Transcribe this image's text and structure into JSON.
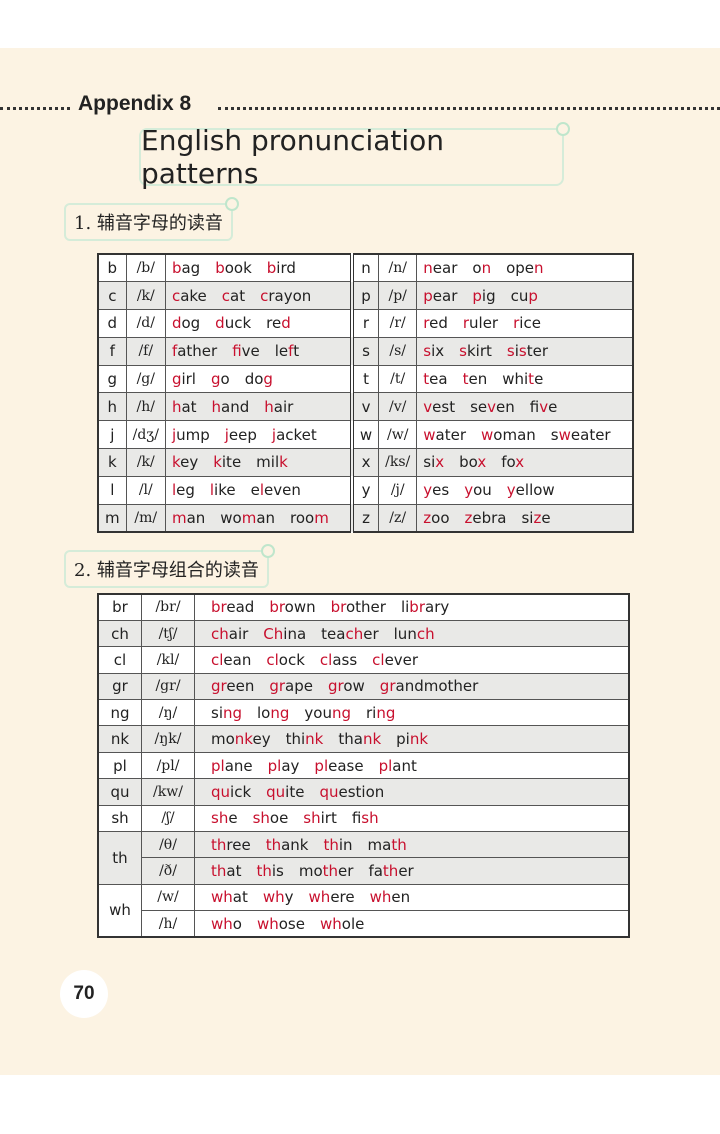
{
  "header": {
    "appendix": "Appendix 8",
    "title": "English pronunciation patterns"
  },
  "section1": {
    "heading": "1. 辅音字母的读音"
  },
  "section2": {
    "heading": "2. 辅音字母组合的读音"
  },
  "highlight_color": "#c8102e",
  "table1": [
    [
      {
        "letter": "b",
        "ipa": "/b/",
        "words": [
          [
            "",
            "b",
            "ag"
          ],
          [
            "",
            "b",
            "ook"
          ],
          [
            "",
            "b",
            "ird"
          ]
        ]
      },
      {
        "letter": "n",
        "ipa": "/n/",
        "words": [
          [
            "",
            "n",
            "ear"
          ],
          [
            "o",
            "n"
          ],
          [
            "ope",
            "n"
          ]
        ]
      }
    ],
    [
      {
        "letter": "c",
        "ipa": "/k/",
        "words": [
          [
            "",
            "c",
            "ake"
          ],
          [
            "",
            "c",
            "at"
          ],
          [
            "",
            "c",
            "rayon"
          ]
        ]
      },
      {
        "letter": "p",
        "ipa": "/p/",
        "words": [
          [
            "",
            "p",
            "ear"
          ],
          [
            "",
            "p",
            "ig"
          ],
          [
            "cu",
            "p"
          ]
        ]
      }
    ],
    [
      {
        "letter": "d",
        "ipa": "/d/",
        "words": [
          [
            "",
            "d",
            "og"
          ],
          [
            "",
            "d",
            "uck"
          ],
          [
            "re",
            "d"
          ]
        ]
      },
      {
        "letter": "r",
        "ipa": "/r/",
        "words": [
          [
            "",
            "r",
            "ed"
          ],
          [
            "",
            "r",
            "uler"
          ],
          [
            "",
            "r",
            "ice"
          ]
        ]
      }
    ],
    [
      {
        "letter": "f",
        "ipa": "/f/",
        "words": [
          [
            "",
            "f",
            "ather"
          ],
          [
            "",
            "f",
            "ive"
          ],
          [
            "le",
            "f",
            "t"
          ]
        ]
      },
      {
        "letter": "s",
        "ipa": "/s/",
        "words": [
          [
            "",
            "s",
            "ix"
          ],
          [
            "",
            "s",
            "kirt"
          ],
          [
            "",
            "s",
            "i",
            "s",
            "ter"
          ]
        ]
      }
    ],
    [
      {
        "letter": "g",
        "ipa": "/g/",
        "words": [
          [
            "",
            "g",
            "irl"
          ],
          [
            "",
            "g",
            "o"
          ],
          [
            "do",
            "g"
          ]
        ]
      },
      {
        "letter": "t",
        "ipa": "/t/",
        "words": [
          [
            "",
            "t",
            "ea"
          ],
          [
            "",
            "t",
            "en"
          ],
          [
            "whi",
            "t",
            "e"
          ]
        ]
      }
    ],
    [
      {
        "letter": "h",
        "ipa": "/h/",
        "words": [
          [
            "",
            "h",
            "at"
          ],
          [
            "",
            "h",
            "and"
          ],
          [
            "",
            "h",
            "air"
          ]
        ]
      },
      {
        "letter": "v",
        "ipa": "/v/",
        "words": [
          [
            "",
            "v",
            "est"
          ],
          [
            "se",
            "v",
            "en"
          ],
          [
            "fi",
            "v",
            "e"
          ]
        ]
      }
    ],
    [
      {
        "letter": "j",
        "ipa": "/dʒ/",
        "words": [
          [
            "",
            "j",
            "ump"
          ],
          [
            "",
            "j",
            "eep"
          ],
          [
            "",
            "j",
            "acket"
          ]
        ]
      },
      {
        "letter": "w",
        "ipa": "/w/",
        "words": [
          [
            "",
            "w",
            "ater"
          ],
          [
            "",
            "w",
            "oman"
          ],
          [
            "s",
            "w",
            "eater"
          ]
        ]
      }
    ],
    [
      {
        "letter": "k",
        "ipa": "/k/",
        "words": [
          [
            "",
            "k",
            "ey"
          ],
          [
            "",
            "k",
            "ite"
          ],
          [
            "mil",
            "k"
          ]
        ]
      },
      {
        "letter": "x",
        "ipa": "/ks/",
        "words": [
          [
            "si",
            "x"
          ],
          [
            "bo",
            "x"
          ],
          [
            "fo",
            "x"
          ]
        ]
      }
    ],
    [
      {
        "letter": "l",
        "ipa": "/l/",
        "words": [
          [
            "",
            "l",
            "eg"
          ],
          [
            "",
            "l",
            "ike"
          ],
          [
            "e",
            "l",
            "even"
          ]
        ]
      },
      {
        "letter": "y",
        "ipa": "/j/",
        "words": [
          [
            "",
            "y",
            "es"
          ],
          [
            "",
            "y",
            "ou"
          ],
          [
            "",
            "y",
            "ellow"
          ]
        ]
      }
    ],
    [
      {
        "letter": "m",
        "ipa": "/m/",
        "words": [
          [
            "",
            "m",
            "an"
          ],
          [
            "wo",
            "m",
            "an"
          ],
          [
            "roo",
            "m"
          ]
        ]
      },
      {
        "letter": "z",
        "ipa": "/z/",
        "words": [
          [
            "",
            "z",
            "oo"
          ],
          [
            "",
            "z",
            "ebra"
          ],
          [
            "si",
            "z",
            "e"
          ]
        ]
      }
    ]
  ],
  "table2": [
    {
      "letters": "br",
      "sounds": [
        {
          "ipa": "/br/",
          "words": [
            [
              "",
              "br",
              "ead"
            ],
            [
              "",
              "br",
              "own"
            ],
            [
              "",
              "br",
              "other"
            ],
            [
              "li",
              "br",
              "ary"
            ]
          ]
        }
      ]
    },
    {
      "letters": "ch",
      "sounds": [
        {
          "ipa": "/tʃ/",
          "words": [
            [
              "",
              "ch",
              "air"
            ],
            [
              "",
              "Ch",
              "ina"
            ],
            [
              "tea",
              "ch",
              "er"
            ],
            [
              "lun",
              "ch"
            ]
          ]
        }
      ]
    },
    {
      "letters": "cl",
      "sounds": [
        {
          "ipa": "/kl/",
          "words": [
            [
              "",
              "cl",
              "ean"
            ],
            [
              "",
              "cl",
              "ock"
            ],
            [
              "",
              "cl",
              "ass"
            ],
            [
              "",
              "cl",
              "ever"
            ]
          ]
        }
      ]
    },
    {
      "letters": "gr",
      "sounds": [
        {
          "ipa": "/gr/",
          "words": [
            [
              "",
              "gr",
              "een"
            ],
            [
              "",
              "gr",
              "ape"
            ],
            [
              "",
              "gr",
              "ow"
            ],
            [
              "",
              "gr",
              "andmother"
            ]
          ]
        }
      ]
    },
    {
      "letters": "ng",
      "sounds": [
        {
          "ipa": "/ŋ/",
          "words": [
            [
              "si",
              "ng"
            ],
            [
              "lo",
              "ng"
            ],
            [
              "you",
              "ng"
            ],
            [
              "ri",
              "ng"
            ]
          ]
        }
      ]
    },
    {
      "letters": "nk",
      "sounds": [
        {
          "ipa": "/ŋk/",
          "words": [
            [
              "mo",
              "nk",
              "ey"
            ],
            [
              "thi",
              "nk"
            ],
            [
              "tha",
              "nk"
            ],
            [
              "pi",
              "nk"
            ]
          ]
        }
      ]
    },
    {
      "letters": "pl",
      "sounds": [
        {
          "ipa": "/pl/",
          "words": [
            [
              "",
              "pl",
              "ane"
            ],
            [
              "",
              "pl",
              "ay"
            ],
            [
              "",
              "pl",
              "ease"
            ],
            [
              "",
              "pl",
              "ant"
            ]
          ]
        }
      ]
    },
    {
      "letters": "qu",
      "sounds": [
        {
          "ipa": "/kw/",
          "words": [
            [
              "",
              "qu",
              "ick"
            ],
            [
              "",
              "qu",
              "ite"
            ],
            [
              "",
              "qu",
              "estion"
            ]
          ]
        }
      ]
    },
    {
      "letters": "sh",
      "sounds": [
        {
          "ipa": "/ʃ/",
          "words": [
            [
              "",
              "sh",
              "e"
            ],
            [
              "",
              "sh",
              "oe"
            ],
            [
              "",
              "sh",
              "irt"
            ],
            [
              "fi",
              "sh"
            ]
          ]
        }
      ]
    },
    {
      "letters": "th",
      "sounds": [
        {
          "ipa": "/θ/",
          "words": [
            [
              "",
              "th",
              "ree"
            ],
            [
              "",
              "th",
              "ank"
            ],
            [
              "",
              "th",
              "in"
            ],
            [
              "ma",
              "th"
            ]
          ]
        },
        {
          "ipa": "/ð/",
          "words": [
            [
              "",
              "th",
              "at"
            ],
            [
              "",
              "th",
              "is"
            ],
            [
              "mo",
              "th",
              "er"
            ],
            [
              "fa",
              "th",
              "er"
            ]
          ]
        }
      ]
    },
    {
      "letters": "wh",
      "sounds": [
        {
          "ipa": "/w/",
          "words": [
            [
              "",
              "wh",
              "at"
            ],
            [
              "",
              "wh",
              "y"
            ],
            [
              "",
              "wh",
              "ere"
            ],
            [
              "",
              "wh",
              "en"
            ]
          ]
        },
        {
          "ipa": "/h/",
          "words": [
            [
              "",
              "wh",
              "o"
            ],
            [
              "",
              "wh",
              "ose"
            ],
            [
              "",
              "wh",
              "ole"
            ]
          ]
        }
      ]
    }
  ],
  "footer": {
    "page_number": "70"
  }
}
